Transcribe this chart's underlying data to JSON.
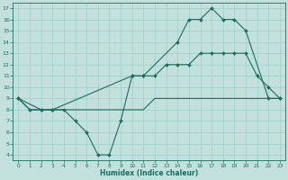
{
  "xlabel": "Humidex (Indice chaleur)",
  "bg_color": "#c2e0dc",
  "grid_color": "#9ecec8",
  "line_color": "#1a6e60",
  "xlim": [
    -0.5,
    23.5
  ],
  "ylim": [
    3.5,
    17.5
  ],
  "xticks": [
    0,
    1,
    2,
    3,
    4,
    5,
    6,
    7,
    8,
    9,
    10,
    11,
    12,
    13,
    14,
    15,
    16,
    17,
    18,
    19,
    20,
    21,
    22,
    23
  ],
  "yticks": [
    4,
    5,
    6,
    7,
    8,
    9,
    10,
    11,
    12,
    13,
    14,
    15,
    16,
    17
  ],
  "line1_x": [
    0,
    1,
    2,
    3,
    10,
    11,
    14,
    15,
    16,
    17,
    18,
    19,
    20,
    22,
    23
  ],
  "line1_y": [
    9,
    8,
    8,
    8,
    11,
    11,
    14,
    16,
    16,
    17,
    16,
    16,
    15,
    9,
    9
  ],
  "line2_x": [
    0,
    2,
    3,
    4,
    5,
    6,
    7,
    8,
    9,
    10,
    11,
    12,
    13,
    14,
    15,
    16,
    17,
    18,
    19,
    20,
    21,
    22,
    23
  ],
  "line2_y": [
    9,
    8,
    8,
    8,
    7,
    6,
    4,
    4,
    7,
    11,
    11,
    11,
    12,
    12,
    12,
    13,
    13,
    13,
    13,
    13,
    11,
    10,
    9
  ],
  "line3_x": [
    0,
    1,
    2,
    3,
    4,
    5,
    6,
    7,
    8,
    9,
    10,
    11,
    12,
    13,
    14,
    15,
    16,
    17,
    18,
    19,
    20,
    21,
    22,
    23
  ],
  "line3_y": [
    9,
    8,
    8,
    8,
    8,
    8,
    8,
    8,
    8,
    8,
    8,
    8,
    9,
    9,
    9,
    9,
    9,
    9,
    9,
    9,
    9,
    9,
    9,
    9
  ]
}
